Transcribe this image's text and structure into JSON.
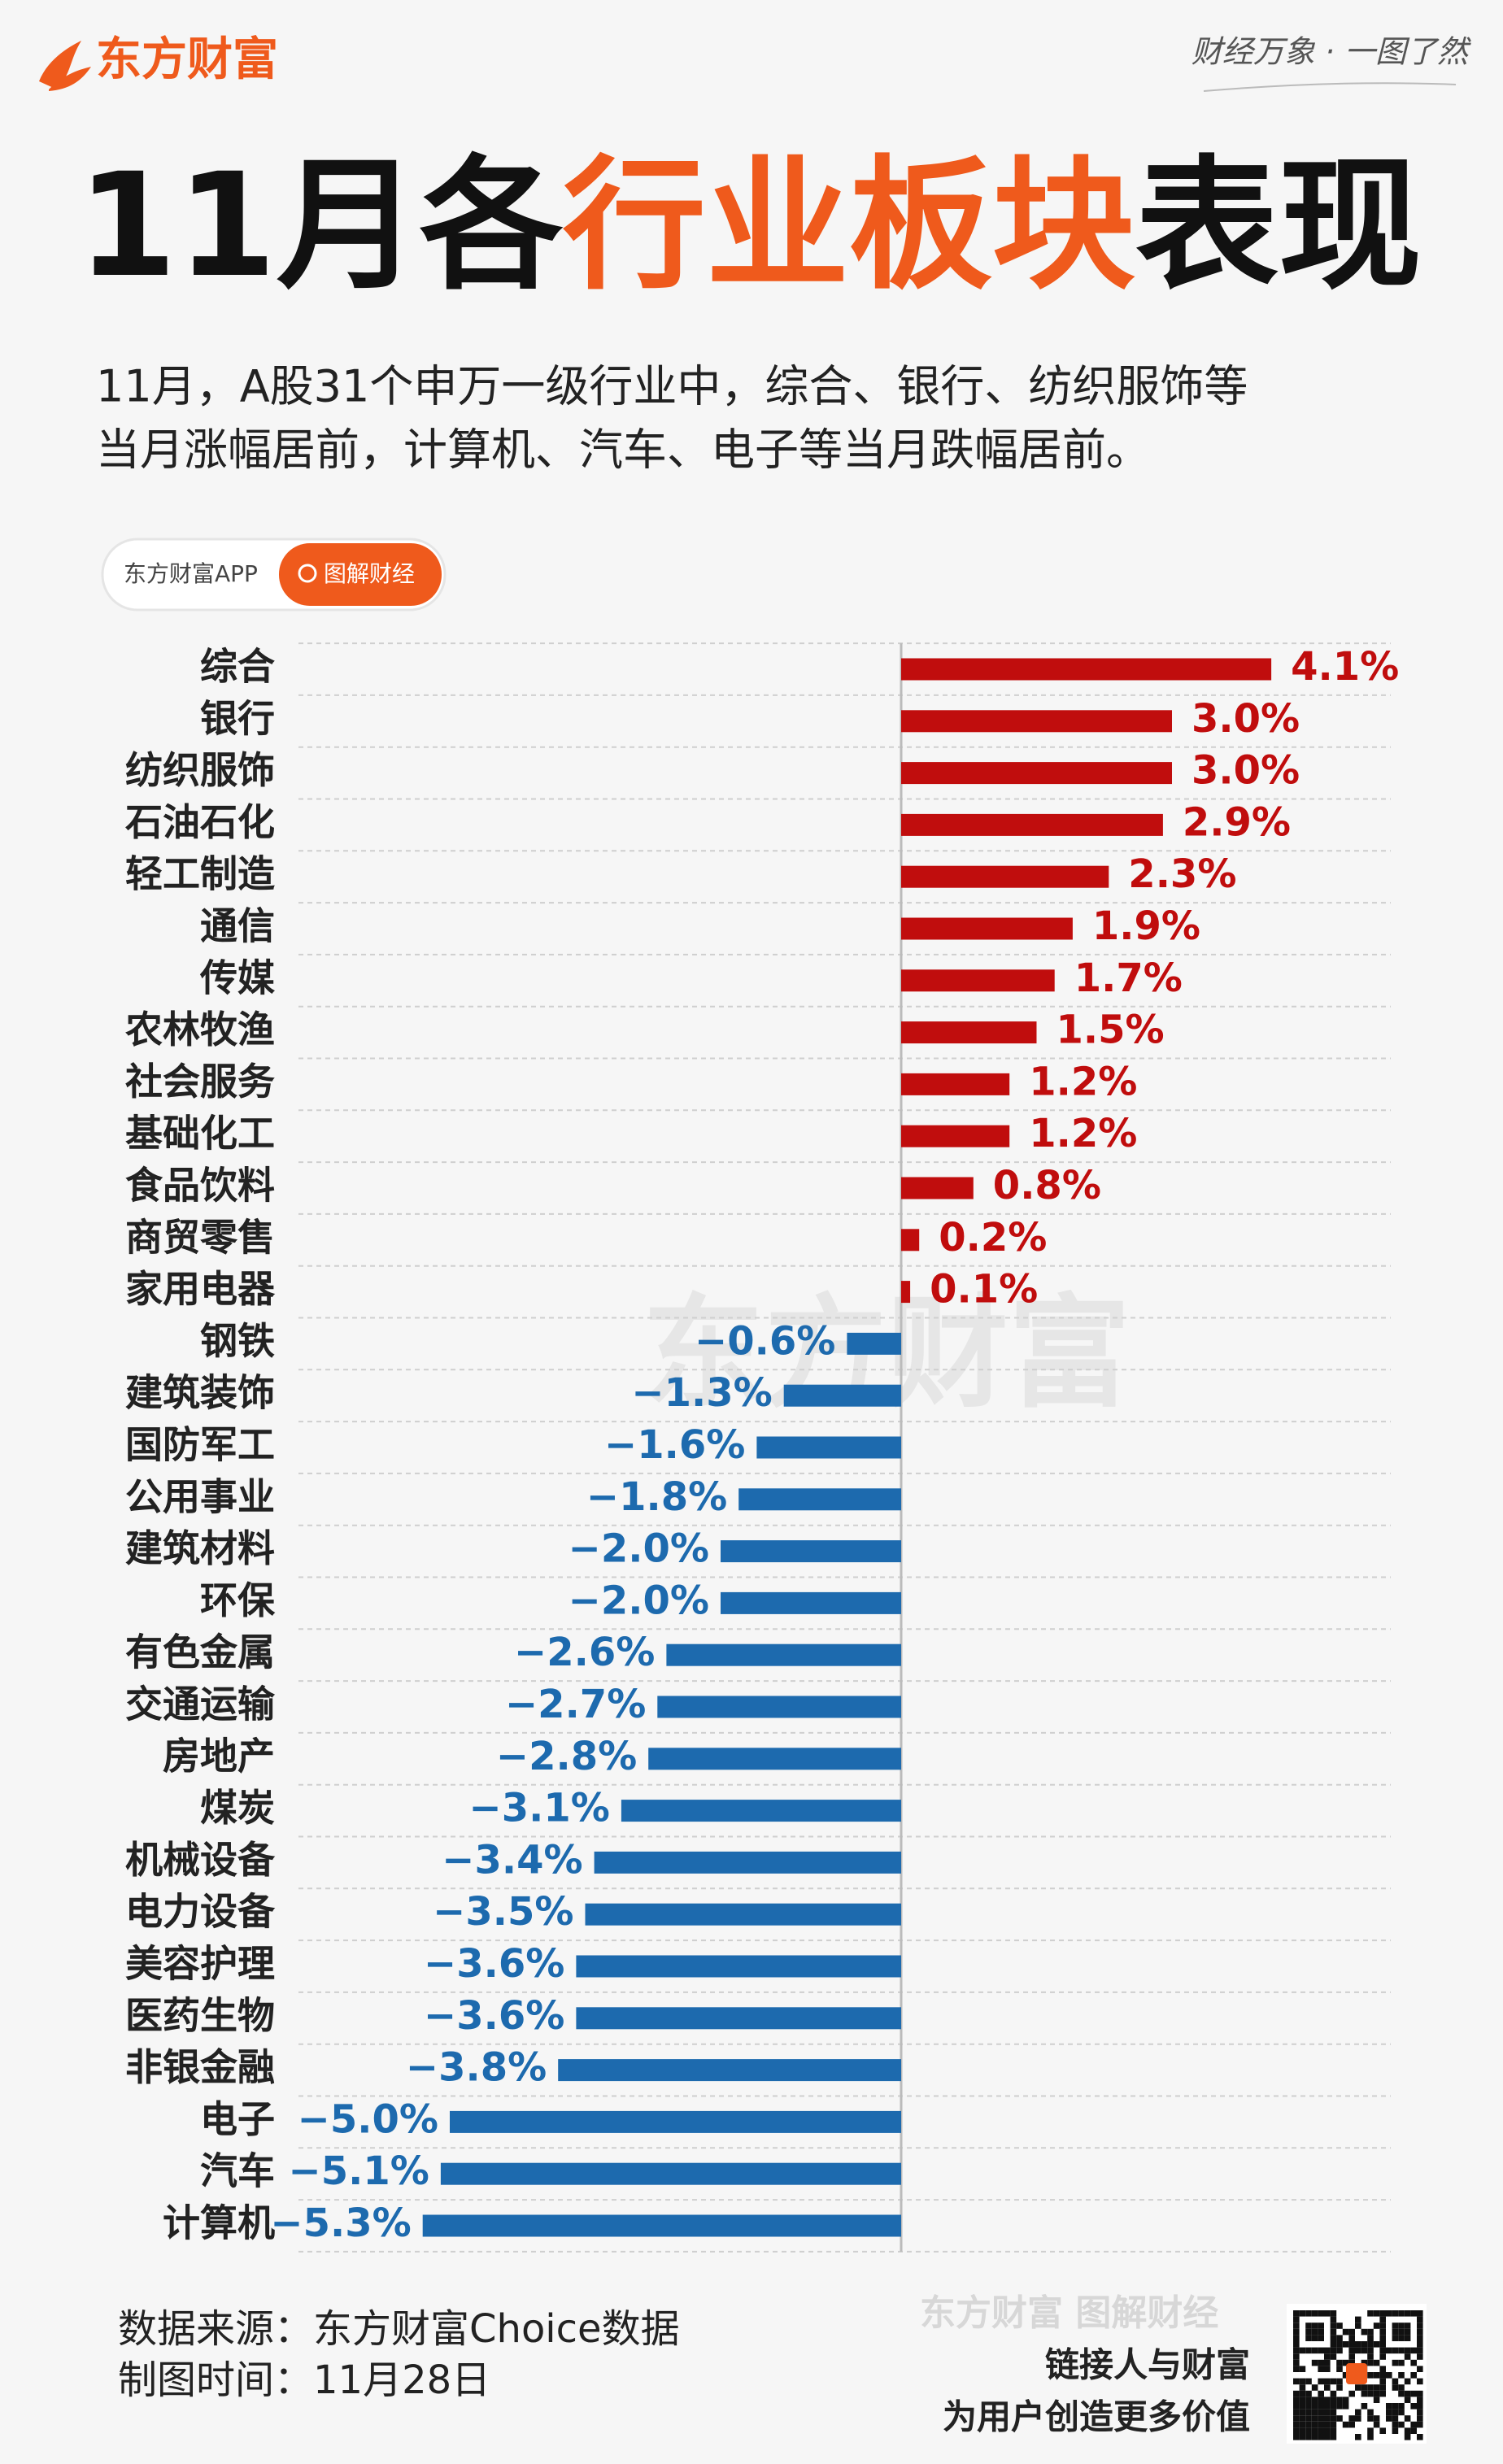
{
  "header": {
    "logo": "东方财富",
    "slogan": "财经万象 · 一图了然"
  },
  "chart_data": {
    "type": "bar",
    "title_parts": [
      "11月各",
      "行业板块",
      "表现"
    ],
    "subtitle_lines": [
      "11月，A股31个申万一级行业中，综合、银行、纺织服饰等",
      "当月涨幅居前，计算机、汽车、电子等当月跌幅居前。"
    ],
    "badge": [
      "东方财富APP",
      "图解财经"
    ],
    "watermark": "东方财富",
    "categories": [
      "综合",
      "银行",
      "纺织服饰",
      "石油石化",
      "轻工制造",
      "通信",
      "传媒",
      "农林牧渔",
      "社会服务",
      "基础化工",
      "食品饮料",
      "商贸零售",
      "家用电器",
      "钢铁",
      "建筑装饰",
      "国防军工",
      "公用事业",
      "建筑材料",
      "环保",
      "有色金属",
      "交通运输",
      "房地产",
      "煤炭",
      "机械设备",
      "电力设备",
      "美容护理",
      "医药生物",
      "非银金融",
      "电子",
      "汽车",
      "计算机"
    ],
    "values": [
      4.1,
      3.0,
      3.0,
      2.9,
      2.3,
      1.9,
      1.7,
      1.5,
      1.2,
      1.2,
      0.8,
      0.2,
      0.1,
      -0.6,
      -1.3,
      -1.6,
      -1.8,
      -2.0,
      -2.0,
      -2.6,
      -2.7,
      -2.8,
      -3.1,
      -3.4,
      -3.5,
      -3.6,
      -3.6,
      -3.8,
      -5.0,
      -5.1,
      -5.3
    ],
    "value_labels": [
      "4.1%",
      "3.0%",
      "3.0%",
      "2.9%",
      "2.3%",
      "1.9%",
      "1.7%",
      "1.5%",
      "1.2%",
      "1.2%",
      "0.8%",
      "0.2%",
      "0.1%",
      "−0.6%",
      "−1.3%",
      "−1.6%",
      "−1.8%",
      "−2.0%",
      "−2.0%",
      "−2.6%",
      "−2.7%",
      "−2.8%",
      "−3.1%",
      "−3.4%",
      "−3.5%",
      "−3.6%",
      "−3.6%",
      "−3.8%",
      "−5.0%",
      "−5.1%",
      "−5.3%"
    ],
    "positive_color": "#c00d0d",
    "negative_color": "#1d6aae"
  },
  "footer": {
    "source": "数据来源：东方财富Choice数据",
    "date": "制图时间：11月28日",
    "brand": "东方财富 图解财经",
    "tagline_1": "链接人与财富",
    "tagline_2": "为用户创造更多价值"
  }
}
